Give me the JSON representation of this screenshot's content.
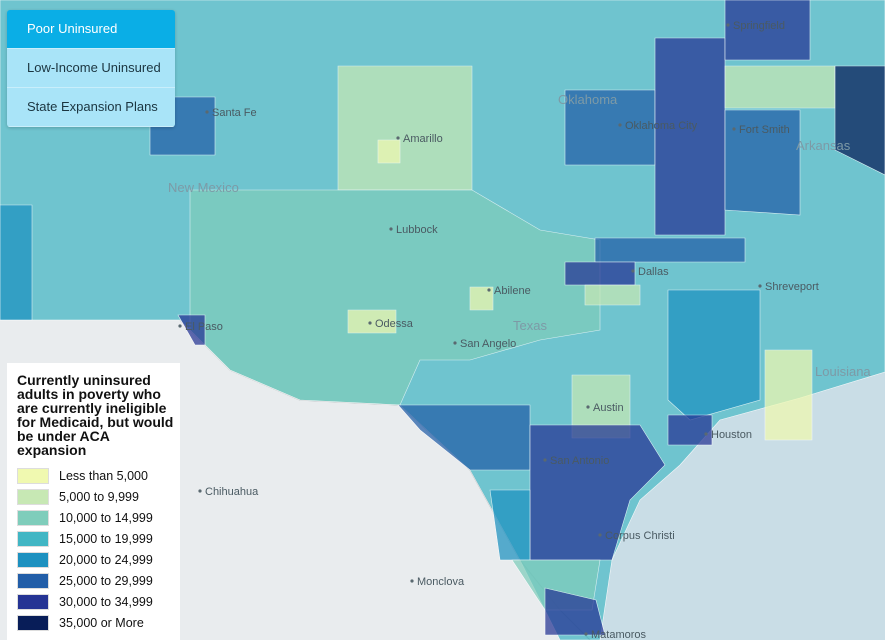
{
  "tabs": [
    {
      "label": "Poor Uninsured",
      "selected": true
    },
    {
      "label": "Low-Income Uninsured",
      "selected": false
    },
    {
      "label": "State Expansion Plans",
      "selected": false
    }
  ],
  "map": {
    "states": [
      "New Mexico",
      "Oklahoma",
      "Texas",
      "Arkansas",
      "Louisiana"
    ],
    "cities": [
      "Santa Fe",
      "Amarillo",
      "Oklahoma City",
      "Springfield",
      "Fort Smith",
      "Lubbock",
      "Dallas",
      "Shreveport",
      "Abilene",
      "Odessa",
      "El Paso",
      "San Angelo",
      "Austin",
      "Houston",
      "San Antonio",
      "Chihuahua",
      "Corpus Christi",
      "Monclova",
      "Matamoros"
    ]
  },
  "legend": {
    "title": "Currently uninsured adults in poverty who are currently ineligible for Medicaid, but would be under ACA expansion",
    "items": [
      {
        "label": "Less than 5,000",
        "color": "#f0f9b0"
      },
      {
        "label": "5,000 to 9,999",
        "color": "#c7e8b4"
      },
      {
        "label": "10,000 to 14,999",
        "color": "#7fcdbb"
      },
      {
        "label": "15,000 to 19,999",
        "color": "#41b6c4"
      },
      {
        "label": "20,000 to 24,999",
        "color": "#1d91c0"
      },
      {
        "label": "25,000 to 29,999",
        "color": "#225ea8"
      },
      {
        "label": "30,000 to 34,999",
        "color": "#253494"
      },
      {
        "label": "35,000 or More",
        "color": "#081d58"
      }
    ]
  }
}
